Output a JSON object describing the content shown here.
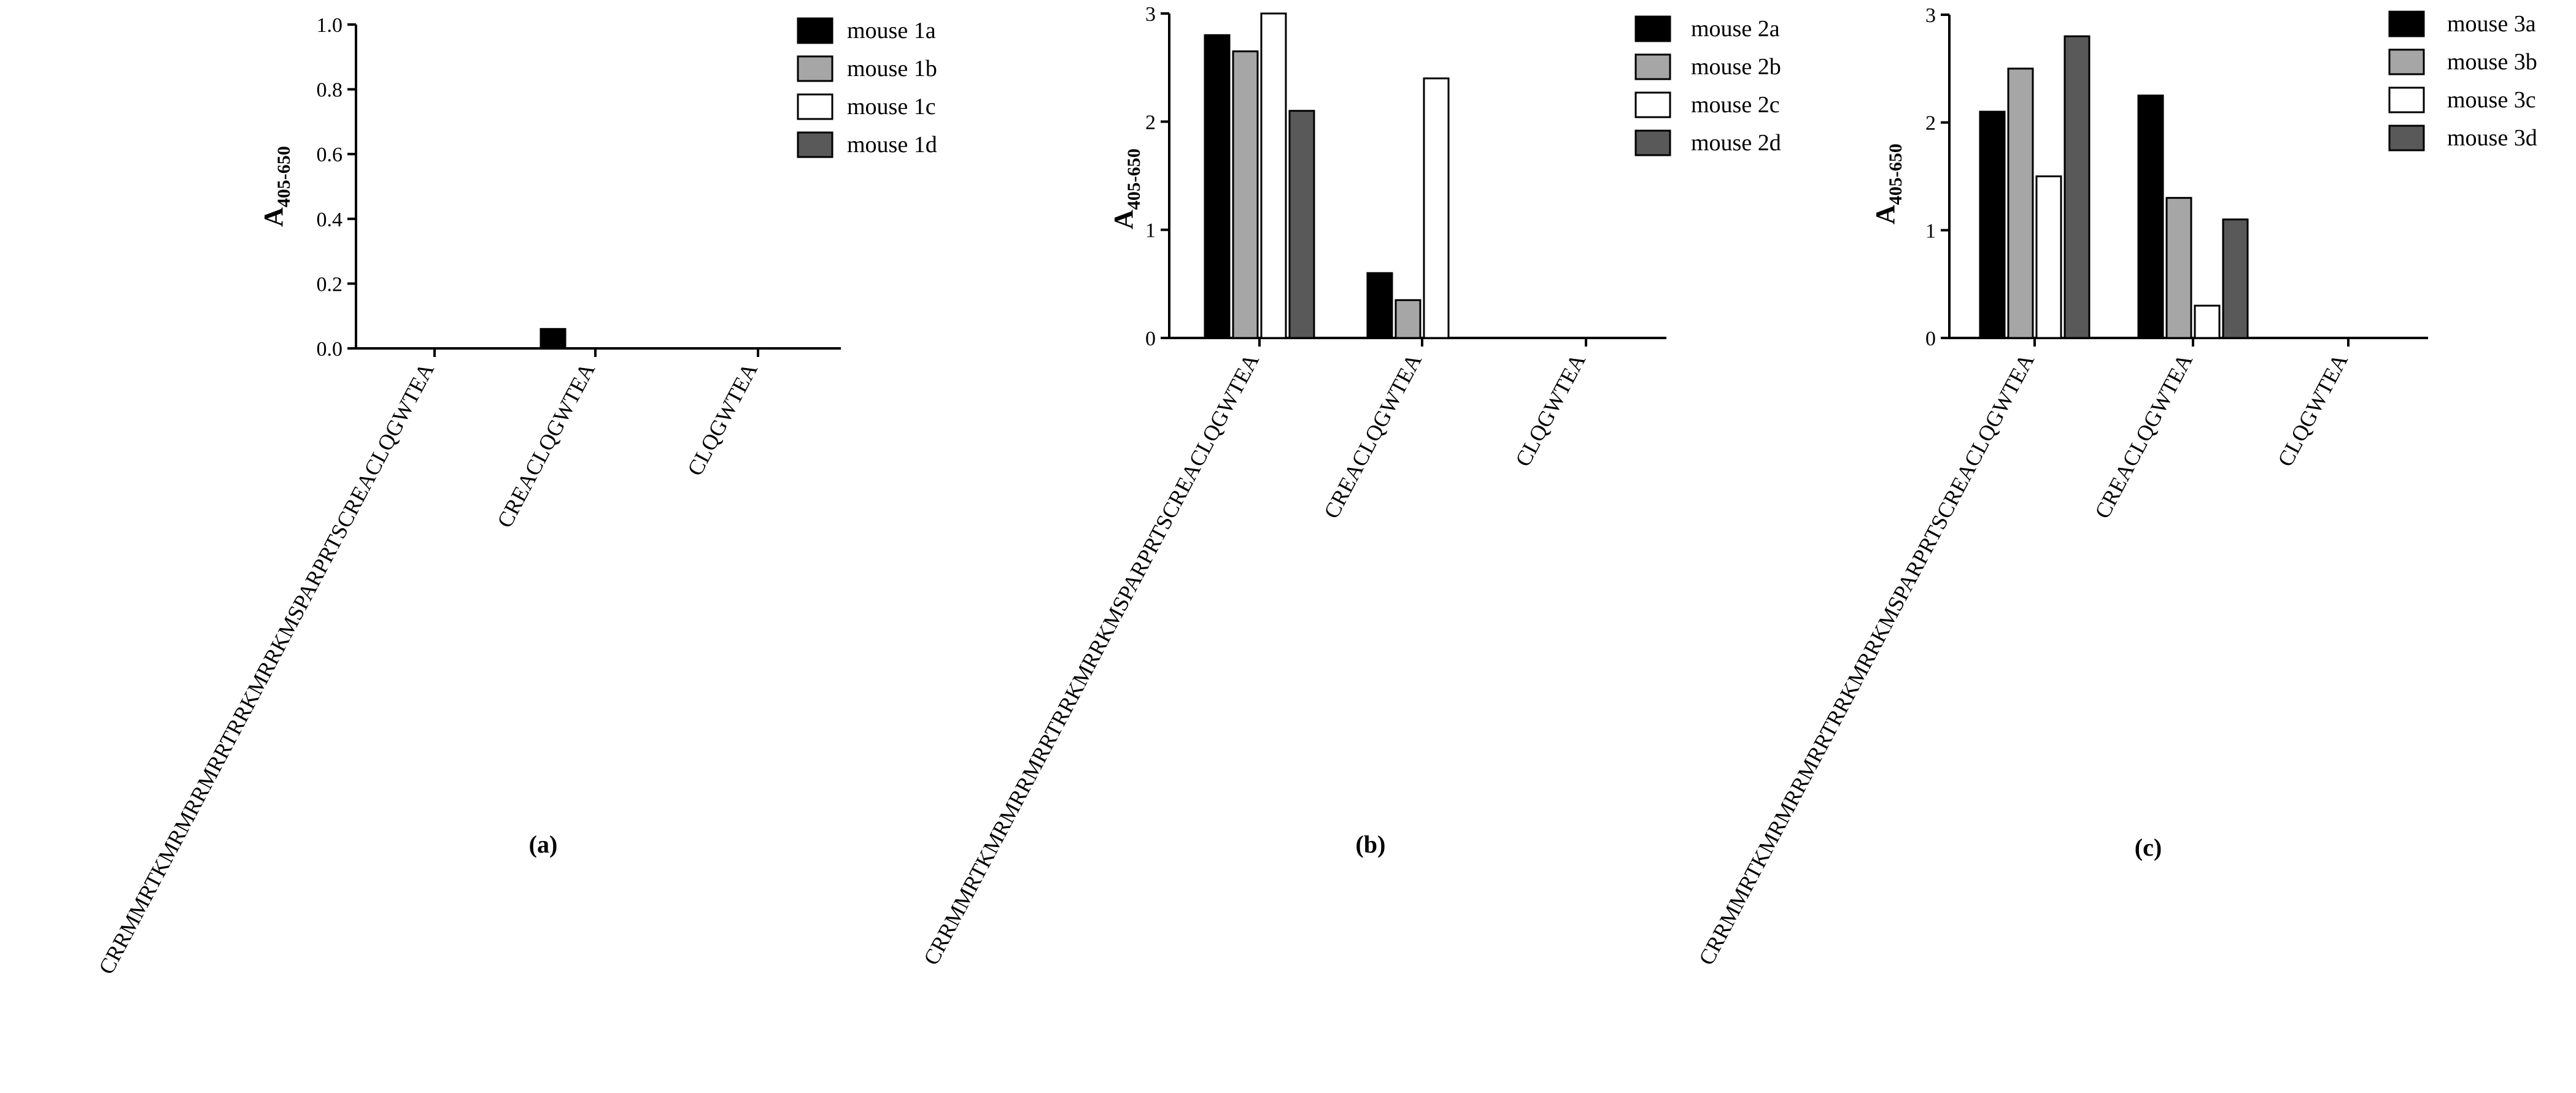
{
  "chart_data": [
    {
      "type": "bar",
      "panel_label": "(a)",
      "ylabel": {
        "main": "A",
        "sub": "405-650"
      },
      "ylim": [
        0,
        1.0
      ],
      "yticks": [
        "0.0",
        "0.2",
        "0.4",
        "0.6",
        "0.8",
        "1.0"
      ],
      "ytick_values": [
        0,
        0.2,
        0.4,
        0.6,
        0.8,
        1.0
      ],
      "categories": [
        "CRRMMRTKMRMRRMRRTRRKMRRKMSPARPRTSCREACLQGWTEA",
        "CREACLQGWTEA",
        "CLQGWTEA"
      ],
      "series": [
        {
          "name": "mouse 1a",
          "color": "#000000",
          "values": [
            0,
            0.06,
            0
          ]
        },
        {
          "name": "mouse 1b",
          "color": "#a6a6a6",
          "values": [
            0,
            0,
            0
          ]
        },
        {
          "name": "mouse 1c",
          "color": "#ffffff",
          "values": [
            0,
            0,
            0
          ]
        },
        {
          "name": "mouse 1d",
          "color": "#595959",
          "values": [
            0,
            0,
            0
          ]
        }
      ],
      "legend": "top-right",
      "grid": false
    },
    {
      "type": "bar",
      "panel_label": "(b)",
      "ylabel": {
        "main": "A",
        "sub": "405-650"
      },
      "ylim": [
        0,
        3
      ],
      "yticks": [
        "0",
        "1",
        "2",
        "3"
      ],
      "ytick_values": [
        0,
        1,
        2,
        3
      ],
      "categories": [
        "CRRMMRTKMRMRRMRRTRRKMRRKMSPARPRTSCREACLQGWTEA",
        "CREACLQGWTEA",
        "CLQGWTEA"
      ],
      "series": [
        {
          "name": "mouse 2a",
          "color": "#000000",
          "values": [
            2.8,
            0.6,
            0
          ]
        },
        {
          "name": "mouse 2b",
          "color": "#a6a6a6",
          "values": [
            2.65,
            0.35,
            0
          ]
        },
        {
          "name": "mouse 2c",
          "color": "#ffffff",
          "values": [
            3.0,
            2.4,
            0
          ]
        },
        {
          "name": "mouse 2d",
          "color": "#595959",
          "values": [
            2.1,
            0,
            0
          ]
        }
      ],
      "legend": "top-right",
      "grid": false
    },
    {
      "type": "bar",
      "panel_label": "(c)",
      "ylabel": {
        "main": "A",
        "sub": "405-650"
      },
      "ylim": [
        0,
        3
      ],
      "yticks": [
        "0",
        "1",
        "2",
        "3"
      ],
      "ytick_values": [
        0,
        1,
        2,
        3
      ],
      "categories": [
        "CRRMMRTKMRMRRMRRTRRKMRRKMSPARPRTSCREACLQGWTEA",
        "CREACLQGWTEA",
        "CLQGWTEA"
      ],
      "series": [
        {
          "name": "mouse 3a",
          "color": "#000000",
          "values": [
            2.1,
            2.25,
            0
          ]
        },
        {
          "name": "mouse 3b",
          "color": "#a6a6a6",
          "values": [
            2.5,
            1.3,
            0
          ]
        },
        {
          "name": "mouse 3c",
          "color": "#ffffff",
          "values": [
            1.5,
            0.3,
            0
          ]
        },
        {
          "name": "mouse 3d",
          "color": "#595959",
          "values": [
            2.8,
            1.1,
            0
          ]
        }
      ],
      "legend": "top-right",
      "grid": false
    }
  ]
}
